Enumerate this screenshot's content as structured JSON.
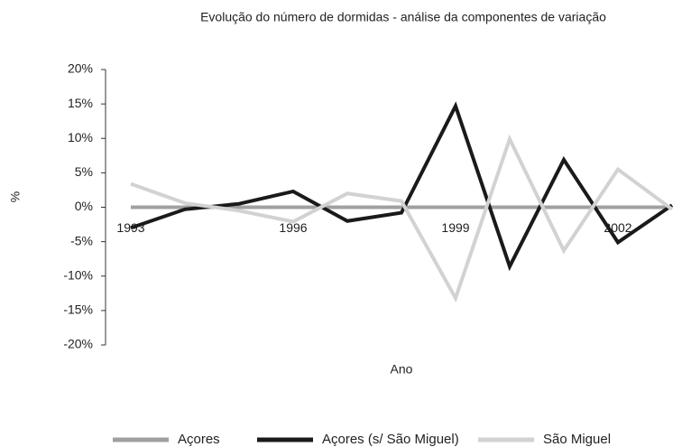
{
  "chart_data": {
    "type": "line",
    "title": "Evolução do número de dormidas - análise da componentes de variação",
    "x_label": "Ano",
    "y_label": "%",
    "categories": [
      "1993",
      null,
      null,
      "1996",
      null,
      null,
      "1999",
      null,
      null,
      "2002",
      null
    ],
    "series": [
      {
        "name": "Açores",
        "color": "#a0a0a0",
        "values": [
          0,
          0,
          0,
          0,
          0,
          0,
          0,
          0,
          0,
          0,
          0
        ]
      },
      {
        "name": "Açores (s/ São Miguel)",
        "color": "#1a1a1a",
        "values": [
          -3,
          -0.3,
          0.5,
          2.3,
          -2,
          -0.8,
          14.7,
          -8.6,
          6.9,
          -5.1,
          0.3
        ]
      },
      {
        "name": "São Miguel",
        "color": "#d2d2d2",
        "values": [
          3.4,
          0.6,
          -0.5,
          -2.1,
          2.0,
          0.9,
          -13.2,
          9.9,
          -6.3,
          5.5,
          -0.3
        ]
      }
    ],
    "ylim": [
      -20,
      20
    ],
    "yticks": [
      {
        "value": -20,
        "label": "-20%"
      },
      {
        "value": -15,
        "label": "-15%"
      },
      {
        "value": -10,
        "label": "-10%"
      },
      {
        "value": -5,
        "label": "-5%"
      },
      {
        "value": 0,
        "label": "0%"
      },
      {
        "value": 5,
        "label": "5%"
      },
      {
        "value": 10,
        "label": "10%"
      },
      {
        "value": 15,
        "label": "15%"
      },
      {
        "value": 20,
        "label": "20%"
      }
    ],
    "grid": false,
    "legend": "bottom"
  }
}
